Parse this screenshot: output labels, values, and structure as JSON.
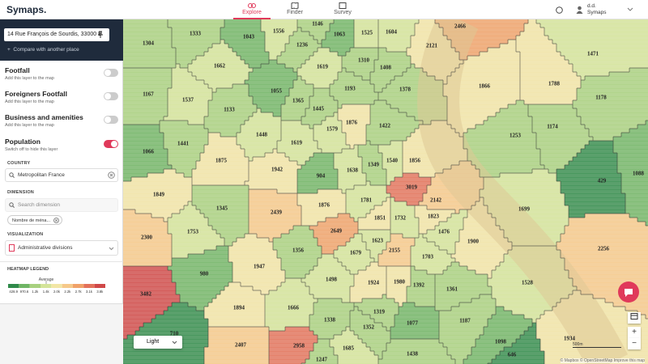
{
  "header": {
    "logo": "Symaps.",
    "tabs": [
      "Explore",
      "Finder",
      "Survey"
    ],
    "user_name": "d.d.",
    "user_org": "Symaps"
  },
  "sidebar": {
    "address": "14 Rue François de Sourdis, 33000 B",
    "compare": "Compare with another place",
    "layers": [
      {
        "title": "Footfall",
        "subtitle": "Add this layer to the map",
        "on": false
      },
      {
        "title": "Foreigners Footfall",
        "subtitle": "Add this layer to the map",
        "on": false
      },
      {
        "title": "Business and amenities",
        "subtitle": "Add this layer to the map",
        "on": false
      },
      {
        "title": "Population",
        "subtitle": "Switch off to hide this layer",
        "on": true
      }
    ],
    "country_label": "COUNTRY",
    "country": "Metropolitan France",
    "dimension_label": "DIMENSION",
    "dimension_placeholder": "Search dimension",
    "dimension_chip": "Nombre de ména...",
    "visualization_label": "VISUALIZATION",
    "visualization": "Administrative divisions",
    "legend_title": "HEATMAP LEGEND",
    "legend_average": "Average",
    "legend_ticks": [
      "428.9",
      "970.6",
      "1.2k",
      "1.4k",
      "2.0k",
      "2.2k",
      "2.7k",
      "3.1k",
      "3.8k"
    ],
    "legend_colors": [
      "#2f8a4a",
      "#6fb565",
      "#a8d17f",
      "#d4e49a",
      "#f2e6a6",
      "#f6c98a",
      "#f0a269",
      "#e3715a",
      "#d04848"
    ]
  },
  "map": {
    "labels": [
      1304,
      1333,
      1043,
      1556,
      1146,
      1063,
      1525,
      1604,
      2466,
      2121,
      1236,
      1662,
      1619,
      1310,
      1408,
      1471,
      1866,
      1788,
      1167,
      1537,
      1133,
      1055,
      1365,
      1193,
      1378,
      1178,
      1445,
      1876,
      1579,
      1422,
      1174,
      1253,
      1441,
      1448,
      1619,
      1066,
      1875,
      1942,
      1638,
      1349,
      1540,
      1856,
      904,
      429,
      1088,
      3019,
      2142,
      1849,
      1345,
      2439,
      1876,
      1781,
      1699,
      1851,
      1732,
      1823,
      1753,
      2649,
      1476,
      2300,
      1623,
      1900,
      2155,
      1356,
      1679,
      1703,
      2256,
      1947,
      980,
      1498,
      1924,
      1980,
      1392,
      1361,
      1528,
      3482,
      1894,
      1666,
      1319,
      1187,
      1338,
      1077,
      1352,
      710,
      1098,
      1934,
      2407,
      2958,
      1685,
      1247,
      1438,
      646
    ],
    "style": "Light",
    "scale": "500m",
    "attribution": "© Mapbox © OpenStreetMap Improve this map"
  }
}
